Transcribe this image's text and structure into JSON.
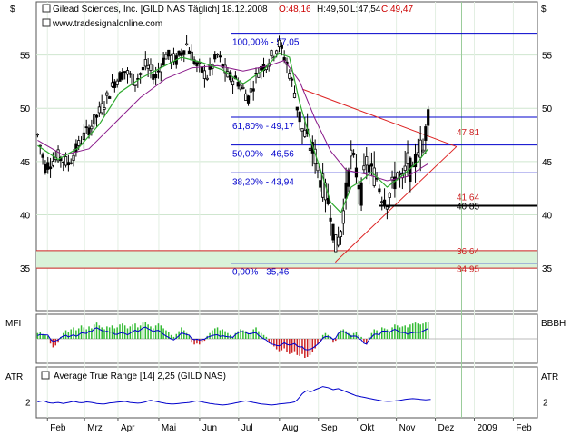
{
  "header": {
    "title": "Gilead Sciences, Inc. [GILD NAS  Täglich] 18.12.2008",
    "ohlc_open": "O:48,16",
    "ohlc_high": "H:49,50",
    "ohlc_low": "L:47,54",
    "ohlc_close": "C:49,47",
    "website": "www.tradesignalonline.com",
    "currency_left": "$",
    "currency_right": "$"
  },
  "colors": {
    "frame": "#555555",
    "background": "#ffffff",
    "candle_body": "#000000",
    "fib_line": "#0000cc",
    "fib_text": "#0000cc",
    "triangle": "#dd2222",
    "ma_fast": "#2eaa2e",
    "ma_slow": "#8a1a8a",
    "support_band": "#d9f2d9",
    "support_line": "#cc2222",
    "level_black": "#000000",
    "mfi_pos": "#33bb33",
    "mfi_neg": "#cc2222",
    "mfi_line": "#0000cc",
    "atr_line": "#0000cc",
    "today_line": "#99cc99"
  },
  "chart_data": [
    {
      "type": "candlestick",
      "name": "price",
      "title": "Gilead Sciences, Inc. [GILD NAS  Täglich] 18.12.2008",
      "ylim": [
        31,
        60
      ],
      "y_ticks": [
        "35",
        "40",
        "45",
        "50",
        "55"
      ],
      "x_tick_labels": [
        "Feb",
        "Mrz",
        "Apr",
        "Mai",
        "Jun",
        "Jul",
        "Aug",
        "Sep",
        "Okt",
        "Nov",
        "Dez",
        "2009",
        "Feb"
      ],
      "path_points": [
        [
          0,
          47.5
        ],
        [
          3,
          44.5
        ],
        [
          8,
          45.5
        ],
        [
          12,
          44.8
        ],
        [
          17,
          47
        ],
        [
          22,
          48.8
        ],
        [
          26,
          50.5
        ],
        [
          30,
          52.5
        ],
        [
          34,
          53.5
        ],
        [
          38,
          52.5
        ],
        [
          42,
          54
        ],
        [
          46,
          53
        ],
        [
          50,
          55
        ],
        [
          54,
          54.5
        ],
        [
          58,
          56
        ],
        [
          62,
          54
        ],
        [
          66,
          53
        ],
        [
          70,
          55
        ],
        [
          74,
          53
        ],
        [
          78,
          52.5
        ],
        [
          82,
          51
        ],
        [
          86,
          53.5
        ],
        [
          90,
          54.5
        ],
        [
          94,
          56
        ],
        [
          97,
          54.2
        ],
        [
          100,
          51.5
        ],
        [
          103,
          48
        ],
        [
          106,
          46.5
        ],
        [
          108,
          45.5
        ],
        [
          110,
          43.5
        ],
        [
          112,
          42
        ],
        [
          114,
          40.5
        ],
        [
          116,
          37
        ],
        [
          118,
          38.5
        ],
        [
          120,
          42
        ],
        [
          122,
          45.5
        ],
        [
          124,
          44
        ],
        [
          126,
          42
        ],
        [
          128,
          45
        ],
        [
          130,
          44
        ],
        [
          132,
          43.5
        ],
        [
          134,
          42
        ],
        [
          136,
          41.5
        ],
        [
          138,
          42.5
        ],
        [
          140,
          44
        ],
        [
          142,
          43
        ],
        [
          144,
          45
        ],
        [
          146,
          43.5
        ],
        [
          148,
          46.5
        ],
        [
          150,
          46
        ],
        [
          152,
          49.5
        ]
      ],
      "fib_levels": [
        {
          "label": "100,00% - 57,05",
          "value": 57.05
        },
        {
          "label": "61,80% - 49,17",
          "value": 49.17
        },
        {
          "label": "50,00% - 46,56",
          "value": 46.56
        },
        {
          "label": "38,20% - 43,94",
          "value": 43.94
        },
        {
          "label": "0,00% - 35,46",
          "value": 35.46
        }
      ],
      "price_labels": [
        {
          "text": "47,81",
          "value": 47.81,
          "color": "red"
        },
        {
          "text": "41,64",
          "value": 41.64,
          "color": "red"
        },
        {
          "text": "40,85",
          "value": 40.85,
          "color": "black"
        },
        {
          "text": "36,64",
          "value": 36.64,
          "color": "red"
        },
        {
          "text": "34,95",
          "value": 34.95,
          "color": "red"
        }
      ],
      "ma_fast_points": [
        [
          0,
          46.5
        ],
        [
          8,
          45.2
        ],
        [
          16,
          46.3
        ],
        [
          24,
          48.5
        ],
        [
          32,
          51.5
        ],
        [
          40,
          52.8
        ],
        [
          48,
          53.8
        ],
        [
          56,
          54.8
        ],
        [
          64,
          54.3
        ],
        [
          72,
          53.6
        ],
        [
          80,
          52.3
        ],
        [
          88,
          53.6
        ],
        [
          94,
          55.2
        ],
        [
          98,
          54.8
        ],
        [
          102,
          50.5
        ],
        [
          106,
          47.2
        ],
        [
          110,
          44.3
        ],
        [
          114,
          41.2
        ],
        [
          118,
          40.2
        ],
        [
          122,
          42.6
        ],
        [
          126,
          43.2
        ],
        [
          130,
          44
        ],
        [
          136,
          42.6
        ],
        [
          142,
          43.7
        ],
        [
          148,
          45
        ],
        [
          152,
          46.2
        ]
      ],
      "ma_slow_points": [
        [
          0,
          47
        ],
        [
          10,
          45.6
        ],
        [
          20,
          46.2
        ],
        [
          30,
          48.6
        ],
        [
          40,
          51
        ],
        [
          50,
          52.8
        ],
        [
          60,
          53.8
        ],
        [
          70,
          54
        ],
        [
          80,
          53.5
        ],
        [
          90,
          54
        ],
        [
          96,
          54.5
        ],
        [
          102,
          52.5
        ],
        [
          108,
          49
        ],
        [
          114,
          46
        ],
        [
          120,
          44.2
        ],
        [
          128,
          43.8
        ],
        [
          136,
          43.2
        ],
        [
          144,
          43.6
        ],
        [
          152,
          44.8
        ]
      ],
      "triangle": {
        "top_start": [
          103,
          51.8
        ],
        "bottom_start": [
          116,
          35.6
        ],
        "apex": [
          163,
          46.4
        ]
      },
      "level_40_85_from": 133,
      "support_band": [
        35,
        36.64
      ]
    },
    {
      "type": "bar",
      "name": "MFI",
      "label_left": "MFI",
      "label_right": "BBBH",
      "values": [
        0.3,
        0.35,
        0.25,
        0.2,
        0.15,
        -0.25,
        -0.45,
        -0.35,
        -0.2,
        0.1,
        0.3,
        0.45,
        0.35,
        0.5,
        0.6,
        0.45,
        0.55,
        0.7,
        0.6,
        0.5,
        0.65,
        0.55,
        0.75,
        0.85,
        0.7,
        0.6,
        0.5,
        0.65,
        0.6,
        0.7,
        0.55,
        0.6,
        0.75,
        0.8,
        0.7,
        0.55,
        0.65,
        0.75,
        0.8,
        0.6,
        0.7,
        0.85,
        0.9,
        0.75,
        0.65,
        0.55,
        0.7,
        0.8,
        0.7,
        0.55,
        0.45,
        0.35,
        0.2,
        0.1,
        0.25,
        0.4,
        0.6,
        0.45,
        0.3,
        0.2,
        -0.2,
        -0.3,
        -0.25,
        -0.3,
        -0.2,
        -0.1,
        0.15,
        0.3,
        0.45,
        0.55,
        0.6,
        0.45,
        0.5,
        0.4,
        0.3,
        0.2,
        0.1,
        0.3,
        0.4,
        0.5,
        0.45,
        0.4,
        0.3,
        0.35,
        0.5,
        0.6,
        0.4,
        0.3,
        0.2,
        0.1,
        -0.15,
        -0.3,
        -0.4,
        -0.55,
        -0.65,
        -0.6,
        -0.5,
        -0.7,
        -0.8,
        -0.75,
        -0.65,
        -0.85,
        -0.9,
        -0.8,
        -1.0,
        -0.95,
        -0.85,
        -0.7,
        -0.5,
        -0.3,
        -0.1,
        0.2,
        0.3,
        0.2,
        0.1,
        -0.2,
        -0.1,
        0.3,
        0.45,
        0.5,
        0.4,
        0.3,
        0.2,
        0.3,
        0.35,
        0.2,
        0.1,
        -0.2,
        -0.3,
        0.1,
        0.3,
        0.5,
        0.45,
        0.3,
        0.6,
        0.55,
        0.5,
        0.4,
        0.6,
        0.75,
        0.7,
        0.6,
        0.65,
        0.7,
        0.6,
        0.75,
        0.8,
        0.85,
        0.8,
        0.75,
        0.8,
        0.85,
        0.9
      ]
    },
    {
      "type": "line",
      "name": "ATR",
      "label_left": "ATR",
      "label_right": "ATR",
      "legend": "Average True Range [14] 2,25 (GILD NAS)",
      "y_ticks": [
        "2"
      ],
      "ylim": [
        0.8,
        4.0
      ],
      "values": [
        2.0,
        2.05,
        2.1,
        2.05,
        1.95,
        1.9,
        1.88,
        1.92,
        1.95,
        1.9,
        1.85,
        1.9,
        1.95,
        2.0,
        2.05,
        2.0,
        1.95,
        1.92,
        1.95,
        2.0,
        1.98,
        1.95,
        1.9,
        1.85,
        1.82,
        1.8,
        1.8,
        1.85,
        1.9,
        1.92,
        1.95,
        1.98,
        2.0,
        2.02,
        2.05,
        2.0,
        1.95,
        1.92,
        1.9,
        1.88,
        1.9,
        1.95,
        2.0,
        2.1,
        2.15,
        2.1,
        2.05,
        2.0,
        1.95,
        1.9,
        1.85,
        1.82,
        1.8,
        1.8,
        1.82,
        1.85,
        1.88,
        1.9,
        1.92,
        1.95,
        2.0,
        2.05,
        2.1,
        2.05,
        2.0,
        1.95,
        1.9,
        1.85,
        1.82,
        1.78,
        1.75,
        1.72,
        1.7,
        1.72,
        1.75,
        1.8,
        1.85,
        1.9,
        1.95,
        2.0,
        2.05,
        2.1,
        2.05,
        2.0,
        1.95,
        1.9,
        1.85,
        1.8,
        1.78,
        1.75,
        1.72,
        1.7,
        1.72,
        1.75,
        1.8,
        1.82,
        1.85,
        1.88,
        1.9,
        1.95,
        2.0,
        2.2,
        2.5,
        2.8,
        3.0,
        3.1,
        3.0,
        3.05,
        3.2,
        3.3,
        3.4,
        3.5,
        3.45,
        3.4,
        3.3,
        3.2,
        3.25,
        3.3,
        3.2,
        3.1,
        3.0,
        2.9,
        2.8,
        2.7,
        2.6,
        2.55,
        2.5,
        2.45,
        2.4,
        2.35,
        2.3,
        2.25,
        2.2,
        2.15,
        2.1,
        2.08,
        2.05,
        2.05,
        2.08,
        2.1,
        2.12,
        2.15,
        2.2,
        2.25,
        2.28,
        2.3,
        2.32,
        2.3,
        2.28,
        2.25,
        2.22,
        2.2,
        2.22,
        2.25
      ]
    }
  ]
}
